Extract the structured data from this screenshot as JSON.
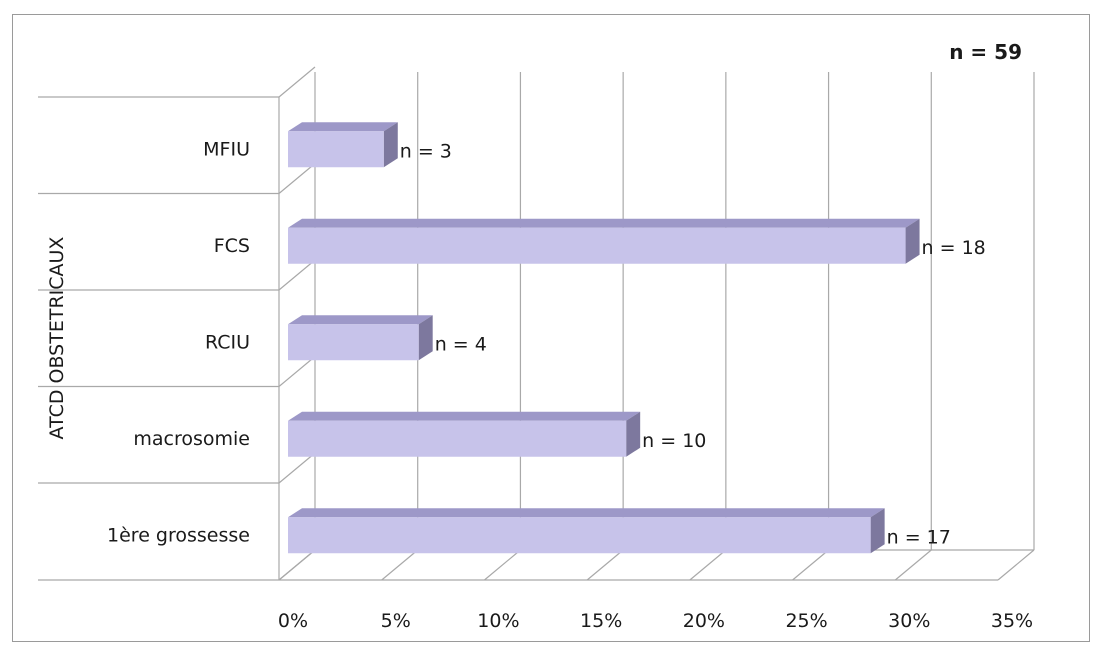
{
  "chart_data": {
    "type": "bar",
    "orientation": "horizontal",
    "three_d": true,
    "ylabel": "ATCD OBSTETRICAUX",
    "total_label": "n = 59",
    "categories": [
      "MFIU",
      "FCS",
      "RCIU",
      "macrosomie",
      "1ère grossesse"
    ],
    "values": [
      5.1,
      30.5,
      6.8,
      16.9,
      28.8
    ],
    "data_labels": [
      "n = 3",
      "n = 18",
      "n = 4",
      "n = 10",
      "n = 17"
    ],
    "xlim": [
      0,
      35
    ],
    "xticks": [
      0,
      5,
      10,
      15,
      20,
      25,
      30,
      35
    ],
    "xtick_labels": [
      "0%",
      "5%",
      "10%",
      "15%",
      "20%",
      "25%",
      "30%",
      "35%"
    ],
    "grid": true,
    "legend": "none",
    "colors": {
      "bar_front": "#c7c3ea",
      "bar_top": "#9d98c8",
      "bar_side": "#7d789e",
      "grid": "#a9a9a9",
      "text": "#1a1a1a"
    }
  }
}
